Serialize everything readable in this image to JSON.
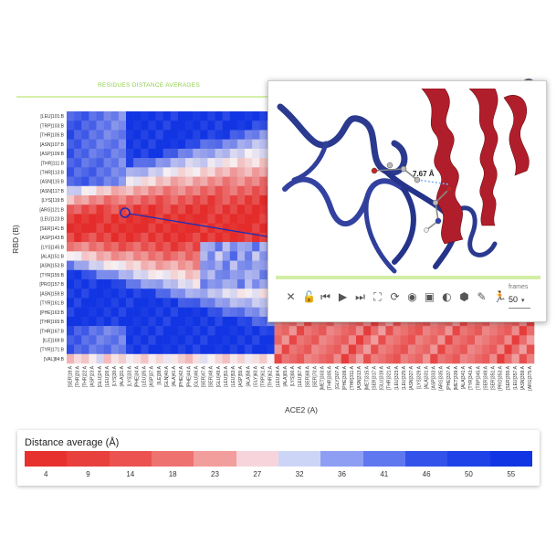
{
  "section_title": "RESIDUES DISTANCE AVERAGES",
  "y_axis_title": "RBD (B)",
  "x_axis_title": "ACE2 (A)",
  "rows": [
    "[LEU]101:B",
    "[TRP]103:B",
    "[THR]105:B",
    "[ASN]107:B",
    "[ASP]109:B",
    "[THR]111:B",
    "[THR]113:B",
    "[ASN]115:B",
    "[ASN]117:B",
    "[LYS]119:B",
    "[ARG]121:B",
    "[LEU]123:B",
    "[SER]141:B",
    "[ASP]143:B",
    "[LYS]145:B",
    "[ALA]151:B",
    "[ASN]153:B",
    "[TYR]155:B",
    "[PRO]157:B",
    "[ASN]159:B",
    "[TYR]161:B",
    "[PHE]163:B",
    "[THR]165:B",
    "[THR]167:B",
    "[ILE]169:B",
    "[TYR]171:B",
    "[VAL]84:B"
  ],
  "columns": [
    "[SER]19:A",
    "[THR]20:A",
    "[THR]22:A",
    "[ASP]23:A",
    "[GLU]24:A",
    "[LEU]26:A",
    "[LYS]30:A",
    "[ALA]31:A",
    "[LYS]33:A",
    "[PHE]34:A",
    "[LEU]35:A",
    "[ASP]37:A",
    "[ILE]38:A",
    "[GLN]40:A",
    "[ALA]41:A",
    "[PHE]42:A",
    "[PHE]44:A",
    "[GLU]46:A",
    "[SER]47:A",
    "[SER]48:A",
    "[GLU]49:A",
    "[LEU]51:A",
    "[LEU]53:A",
    "[ASP]55:A",
    "[ALA]58:A",
    "[GLY]60:A",
    "[TRP]61:A",
    "[THR]62:A",
    "[LEU]64:A",
    "[ALA]65:A",
    "[LYS]66:A",
    "[LEU]67:A",
    "[SER]68:A",
    "[SER]70:A",
    "[MET]303:A",
    "[THR]305:A",
    "[GLY]307:A",
    "[PHE]309:A",
    "[THR]311:A",
    "[ASN]313:A",
    "[MET]315:A",
    "[SER]317:A",
    "[GLU]319:A",
    "[THR]321:A",
    "[LEU]323:A",
    "[LEU]325:A",
    "[ASN]327:A",
    "[LYS]329:A",
    "[ALA]331:A",
    "[ASP]333:A",
    "[ARG]335:A",
    "[PHE]337:A",
    "[MET]339:A",
    "[ALA]341:A",
    "[TYR]343:A",
    "[TRP]345:A",
    "[SER]349:A",
    "[SER]351:A",
    "[PRO]353:A",
    "[SER]355:A",
    "[LEU]357:A",
    "[ASN]359:A",
    "[ARG]375:A"
  ],
  "measurement_label": "7.67 Å",
  "toolbar_icons": [
    "close-icon",
    "unlock-icon",
    "skip-back-icon",
    "play-icon",
    "skip-forward-icon",
    "fullscreen-icon",
    "refresh-icon",
    "record-icon",
    "image-icon",
    "contrast-icon",
    "cube-icon",
    "brush-icon",
    "run-icon"
  ],
  "frames_label": "frames",
  "frames_value": "50",
  "legend": {
    "title": "Distance average (Å)",
    "ticks": [
      "4",
      "9",
      "14",
      "18",
      "23",
      "27",
      "32",
      "36",
      "41",
      "46",
      "50",
      "55"
    ],
    "colors": [
      "#e6312f",
      "#e8403c",
      "#eb5250",
      "#ee7270",
      "#f29e9c",
      "#f7d4dc",
      "#cdd5f6",
      "#8e9ff3",
      "#5f78f0",
      "#3352ea",
      "#1f42e8",
      "#1235e4"
    ]
  },
  "colors": {
    "accent_green": "#8fd04a",
    "ribbon_blue": "#2b3a8f",
    "ribbon_red": "#b11e2b"
  }
}
